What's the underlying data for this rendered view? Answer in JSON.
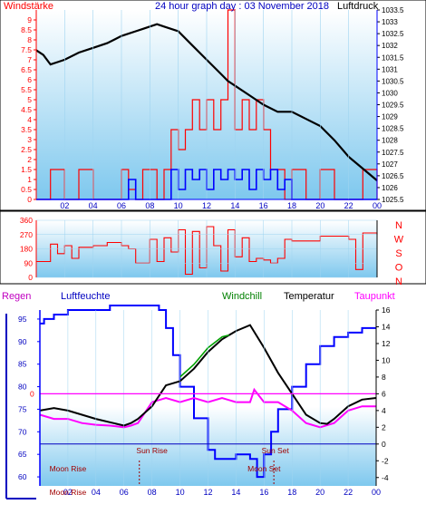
{
  "chart_data": [
    {
      "type": "line",
      "title": "24 hour graph day : 03 November 2018",
      "ylabel_left": "Windstärke",
      "ylabel_right": "Luftdruck",
      "x_ticks": [
        "02",
        "04",
        "06",
        "08",
        "10",
        "12",
        "14",
        "16",
        "18",
        "20",
        "22",
        "00"
      ],
      "ylim_left": [
        0,
        9.5
      ],
      "y_ticks_left": [
        "0",
        "0.5",
        "1",
        "1.5",
        "2",
        "2.5",
        "3",
        "3.5",
        "4",
        "4.5",
        "5",
        "5.5",
        "6",
        "6.5",
        "7",
        "7.5",
        "8",
        "8.5",
        "9"
      ],
      "ylim_right": [
        1025.5,
        1033.5
      ],
      "y_ticks_right": [
        "1025.5",
        "1026",
        "1026.5",
        "1027",
        "1027.5",
        "1028",
        "1028.5",
        "1029",
        "1029.5",
        "1030",
        "1030.5",
        "1031",
        "1031.5",
        "1032",
        "1032.5",
        "1033",
        "1033.5"
      ],
      "series": [
        {
          "role": "pressure",
          "color": "#000000",
          "x": [
            0,
            0.5,
            1,
            1.5,
            2,
            3,
            4,
            5,
            6,
            7,
            7.5,
            8,
            8.5,
            9,
            10,
            11,
            12,
            13,
            13.5,
            14,
            15,
            16,
            17,
            18,
            19,
            20,
            21,
            22,
            23,
            24
          ],
          "y": [
            1031.8,
            1031.6,
            1031.2,
            1031.3,
            1031.4,
            1031.7,
            1031.9,
            1032.1,
            1032.4,
            1032.6,
            1032.7,
            1032.8,
            1032.9,
            1032.8,
            1032.6,
            1032.0,
            1031.4,
            1030.8,
            1030.5,
            1030.3,
            1029.9,
            1029.5,
            1029.2,
            1029.2,
            1028.9,
            1028.6,
            1028.0,
            1027.3,
            1026.8,
            1026.3
          ]
        },
        {
          "role": "gust",
          "color": "#ff0000",
          "x": [
            0,
            1,
            2,
            3,
            4,
            5,
            6,
            6.5,
            7,
            7.5,
            8,
            8.5,
            9,
            9.5,
            10,
            10.5,
            11,
            11.5,
            12,
            12.5,
            13,
            13.5,
            14,
            14.5,
            15,
            15.5,
            16,
            16.5,
            17,
            17.5,
            18,
            19,
            20,
            21,
            22,
            23,
            24
          ],
          "y": [
            0,
            1.5,
            0,
            1.5,
            0,
            0,
            1.5,
            0.5,
            0,
            1.5,
            1.5,
            0,
            1.5,
            3.5,
            2.5,
            3.5,
            5,
            3.5,
            5,
            3.5,
            5,
            9.5,
            3.5,
            5,
            3.5,
            5,
            3.5,
            1.5,
            1.5,
            0,
            1.5,
            0,
            1.5,
            0,
            0,
            1.5,
            0
          ]
        },
        {
          "role": "mean",
          "color": "#0000ff",
          "x": [
            0,
            6,
            6.5,
            7,
            9,
            9.5,
            10,
            10.5,
            11,
            11.5,
            12,
            12.5,
            13,
            13.5,
            14,
            14.5,
            15,
            15.5,
            16,
            16.5,
            17,
            17.5,
            18,
            24
          ],
          "y": [
            0,
            0,
            1,
            0,
            0,
            1.5,
            0.5,
            1.5,
            1,
            1.5,
            0.5,
            1.5,
            1,
            1.5,
            1,
            1.5,
            0.5,
            1.5,
            1,
            1.5,
            0.5,
            1,
            0,
            0
          ]
        }
      ]
    },
    {
      "type": "scatter",
      "ylim": [
        0,
        360
      ],
      "y_ticks": [
        "0",
        "90",
        "180",
        "270",
        "360"
      ],
      "direction_labels": [
        "N",
        "W",
        "S",
        "O",
        "N"
      ],
      "series": [
        {
          "role": "direction",
          "color": "#ff0000",
          "x": [
            0,
            1,
            1.5,
            2,
            2.5,
            3,
            4,
            5,
            6,
            6.5,
            7,
            8,
            8.5,
            9,
            9.5,
            10,
            10.5,
            11,
            11.5,
            12,
            12.5,
            13,
            13.5,
            14,
            14.5,
            15,
            15.5,
            16,
            16.5,
            17,
            17.5,
            18,
            19,
            20,
            21,
            22,
            22.5,
            23,
            24
          ],
          "y": [
            100,
            210,
            150,
            200,
            120,
            190,
            200,
            220,
            200,
            180,
            90,
            240,
            100,
            250,
            160,
            300,
            20,
            290,
            60,
            320,
            200,
            40,
            300,
            130,
            250,
            100,
            120,
            110,
            90,
            120,
            240,
            230,
            230,
            260,
            260,
            240,
            50,
            280,
            270
          ]
        }
      ]
    },
    {
      "type": "line",
      "legend": [
        "Regen",
        "Luftfeuchte",
        "Windchill",
        "Temperatur",
        "Taupunkt"
      ],
      "ylim_left": [
        58,
        97
      ],
      "y_ticks_left": [
        "60",
        "65",
        "70",
        "75",
        "80",
        "85",
        "90",
        "95"
      ],
      "ylim_right": [
        -5,
        16
      ],
      "y_ticks_right": [
        "16",
        "14",
        "12",
        "10",
        "8",
        "6",
        "4",
        "2",
        "0",
        "-2",
        "-4"
      ],
      "annotations": [
        "Sun Rise",
        "Sun Set",
        "Moon Rise",
        "Moon Set",
        "Moon Rise"
      ],
      "series": [
        {
          "role": "humidity",
          "color": "#0000ff",
          "x": [
            0,
            0.3,
            1,
            2,
            3,
            4,
            5,
            6,
            7,
            8,
            8.5,
            9,
            9.5,
            10,
            11,
            12,
            12.5,
            13,
            14,
            15,
            15.5,
            16,
            16.5,
            17,
            18,
            19,
            20,
            21,
            22,
            23,
            24
          ],
          "y": [
            94,
            95,
            96,
            97,
            97,
            97,
            98,
            98,
            98,
            98,
            97,
            93,
            87,
            80,
            73,
            66,
            64,
            64,
            65,
            64,
            60,
            65,
            70,
            75,
            80,
            85,
            89,
            91,
            92,
            93,
            93
          ]
        },
        {
          "role": "temperature",
          "color": "#000000",
          "x": [
            0,
            1,
            2,
            3,
            4,
            5,
            6,
            6.5,
            7,
            8,
            9,
            10,
            11,
            12,
            13,
            14,
            15,
            16,
            17,
            18,
            19,
            20,
            20.5,
            21,
            22,
            23,
            24
          ],
          "y": [
            4.0,
            4.3,
            4.0,
            3.5,
            3.0,
            2.6,
            2.2,
            2.5,
            3.0,
            4.5,
            7.0,
            7.5,
            9.0,
            11.0,
            12.5,
            13.5,
            14.2,
            11.5,
            8.5,
            6.0,
            3.5,
            2.5,
            2.4,
            3.0,
            4.5,
            5.3,
            5.5
          ]
        },
        {
          "role": "windchill",
          "color": "#00a000",
          "x": [
            10,
            11,
            12,
            13,
            13.5
          ],
          "y": [
            8.0,
            9.5,
            11.5,
            12.8,
            13.0
          ]
        },
        {
          "role": "dewpoint",
          "color": "#ff00ff",
          "x": [
            0,
            1,
            2,
            3,
            4,
            5,
            6,
            6.5,
            7,
            8,
            9,
            10,
            11,
            12,
            13,
            14,
            15,
            15.3,
            16,
            17,
            18,
            19,
            20,
            21,
            22,
            23,
            24
          ],
          "y": [
            3.5,
            3.0,
            3.0,
            2.5,
            2.3,
            2.2,
            2.0,
            2.2,
            2.5,
            5.0,
            5.5,
            5.0,
            5.5,
            5.0,
            5.5,
            5.0,
            5.0,
            6.5,
            5.0,
            5.0,
            4.0,
            2.5,
            2.0,
            2.5,
            4.0,
            4.5,
            4.5
          ]
        }
      ]
    }
  ],
  "colors": {
    "blue": "#0000ff",
    "red": "#ff0000",
    "green": "#008000",
    "magenta": "#ff00ff",
    "black": "#000000"
  }
}
